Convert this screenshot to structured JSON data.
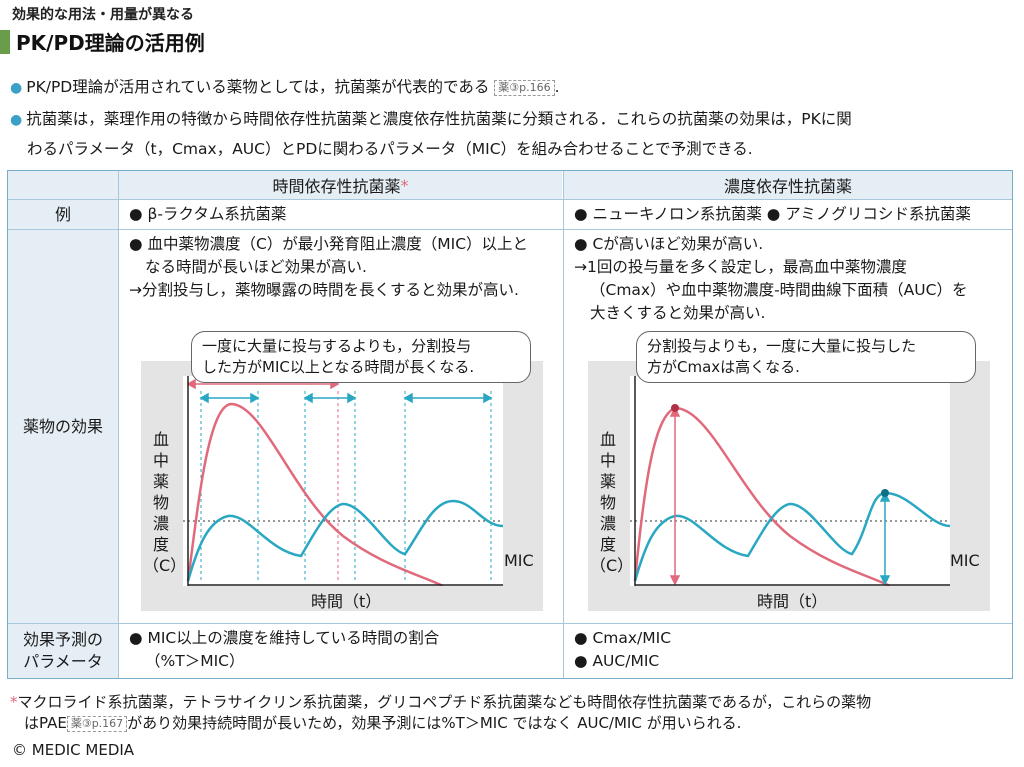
{
  "header": {
    "small_title": "効果的な用法・用量が異なる",
    "title": "PK/PD理論の活用例"
  },
  "intro": {
    "bullet1_text": "PK/PD理論が活用されている薬物としては，抗菌薬が代表的である",
    "bullet1_ref": "薬③p.166",
    "bullet1_end": ".",
    "bullet2_line1": "抗菌薬は，薬理作用の特徴から時間依存性抗菌薬と濃度依存性抗菌薬に分類される．これらの抗菌薬の効果は，PKに関",
    "bullet2_line2": "わるパラメータ（t，Cmax，AUC）とPDに関わるパラメータ（MIC）を組み合わせることで予測できる."
  },
  "table": {
    "col_headers": [
      "時間依存性抗菌薬",
      "濃度依存性抗菌薬"
    ],
    "col1_asterisk": "*",
    "row_headers": {
      "example": "例",
      "effect": "薬物の効果",
      "param_line1": "効果予測の",
      "param_line2": "パラメータ"
    },
    "example": {
      "time_dependent": "● β-ラクタム系抗菌薬",
      "conc_dependent": "● ニューキノロン系抗菌薬 ● アミノグリコシド系抗菌薬"
    },
    "effect": {
      "time_dependent_lines": [
        "● 血中薬物濃度（C）が最小発育阻止濃度（MIC）以上と",
        "なる時間が長いほど効果が高い.",
        "→分割投与し，薬物曝露の時間を長くすると効果が高い."
      ],
      "conc_dependent_lines": [
        "● Cが高いほど効果が高い.",
        "→1回の投与量を多く設定し，最高血中薬物濃度",
        "（Cmax）や血中薬物濃度-時間曲線下面積（AUC）を",
        "大きくすると効果が高い."
      ],
      "bubble_left_lines": [
        "一度に大量に投与するよりも，分割投与",
        "した方がMIC以上となる時間が長くなる."
      ],
      "bubble_right_lines": [
        "分割投与よりも，一度に大量に投与した",
        "方がCmaxは高くなる."
      ]
    },
    "params": {
      "time_dependent_lines": [
        "● MIC以上の濃度を維持している時間の割合",
        "（%T＞MIC）"
      ],
      "conc_dependent_lines": [
        "● Cmax/MIC",
        "● AUC/MIC"
      ]
    }
  },
  "graph": {
    "ylabel_chars": [
      "血",
      "中",
      "薬",
      "物",
      "濃",
      "度",
      "（C）"
    ],
    "xlabel": "時間（t）",
    "mic_label": "MIC",
    "colors": {
      "single_dose": "#e06a7c",
      "divided_dose": "#2aa7c2",
      "mic_line": "#333333",
      "panel_bg": "#e4e4e4"
    }
  },
  "footnote": {
    "asterisk": "*",
    "line1": "マクロライド系抗菌薬，テトラサイクリン系抗菌薬，グリコペプチド系抗菌薬なども時間依存性抗菌薬であるが，これらの薬物",
    "line2_a": "はPAE",
    "line2_ref": "薬③p.167",
    "line2_b": "があり効果持続時間が長いため，効果予測には%T＞MIC ではなく AUC/MIC が用いられる."
  },
  "copyright": "© MEDIC MEDIA"
}
